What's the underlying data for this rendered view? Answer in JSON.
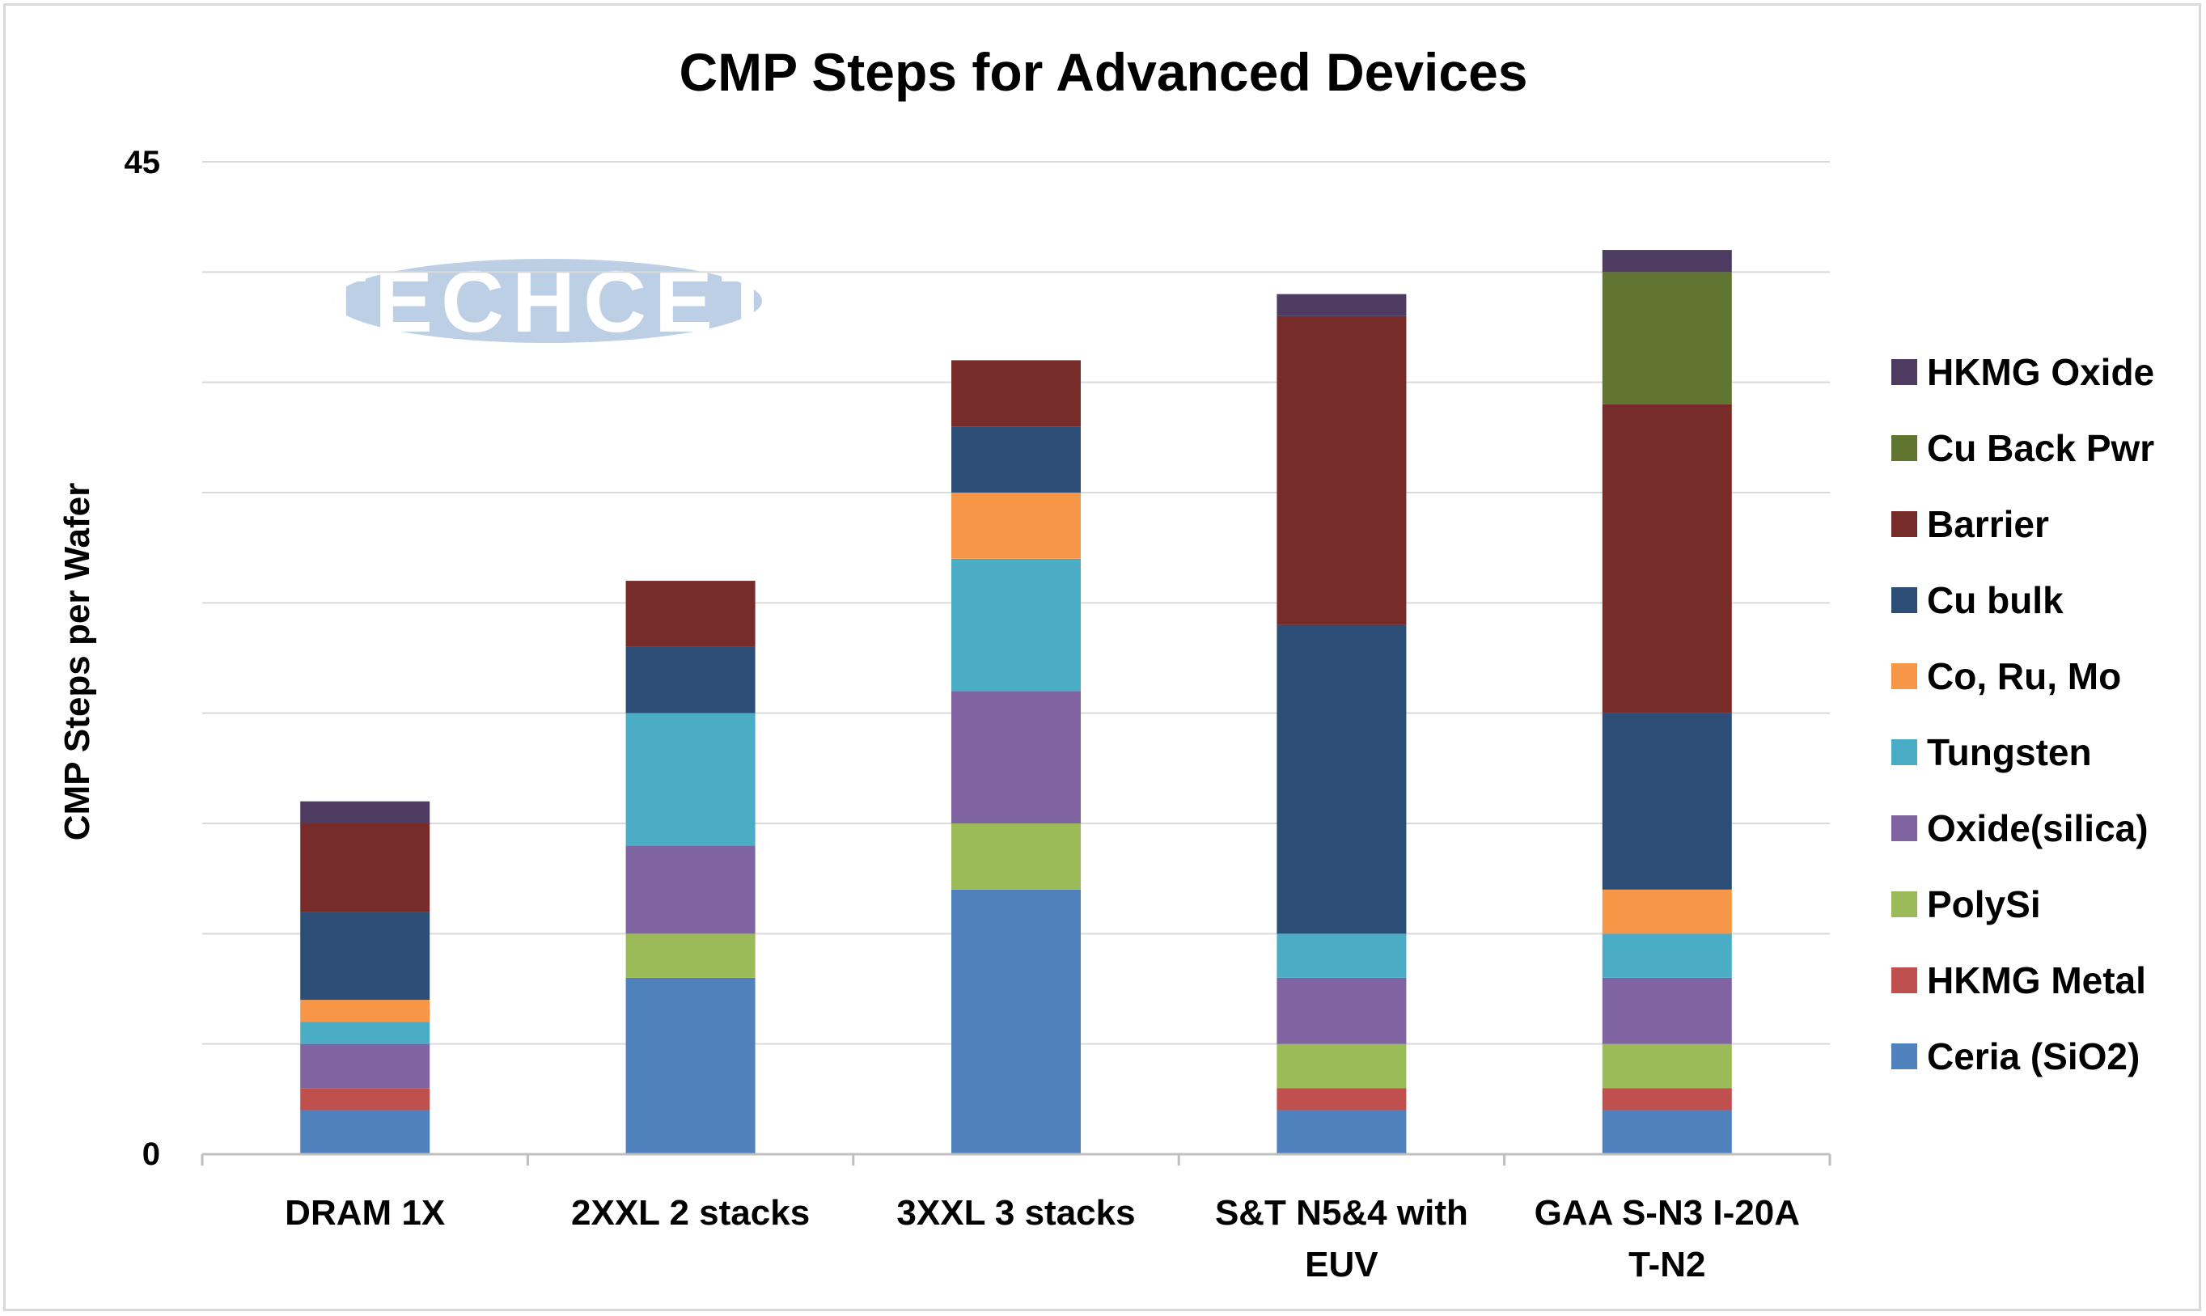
{
  "chart_data": {
    "type": "bar",
    "stacked": true,
    "title": "CMP Steps for Advanced Devices",
    "ylabel": "CMP Steps per Wafer",
    "xlabel": "",
    "ylim": [
      0,
      45
    ],
    "yticks": [
      "0",
      "45"
    ],
    "grid": true,
    "legend_position": "right",
    "watermark": "TECHCET",
    "categories": [
      [
        "DRAM 1X"
      ],
      [
        "2XXL 2 stacks"
      ],
      [
        "3XXL 3 stacks"
      ],
      [
        "S&T N5&4 with",
        "EUV"
      ],
      [
        "GAA S-N3 I-20A",
        "T-N2"
      ]
    ],
    "series": [
      {
        "name": "Ceria (SiO2)",
        "color": "#4f81bd",
        "values": [
          2,
          8,
          12,
          2,
          2
        ]
      },
      {
        "name": "HKMG Metal",
        "color": "#c0504d",
        "values": [
          1,
          0,
          0,
          1,
          1
        ]
      },
      {
        "name": "PolySi",
        "color": "#9bbb59",
        "values": [
          0,
          2,
          3,
          2,
          2
        ]
      },
      {
        "name": "Oxide(silica)",
        "color": "#8064a2",
        "values": [
          2,
          4,
          6,
          3,
          3
        ]
      },
      {
        "name": "Tungsten",
        "color": "#4bacc6",
        "values": [
          1,
          6,
          6,
          2,
          2
        ]
      },
      {
        "name": "Co, Ru, Mo",
        "color": "#f79646",
        "values": [
          1,
          0,
          3,
          0,
          2
        ]
      },
      {
        "name": "Cu bulk",
        "color": "#2c4d75",
        "values": [
          4,
          3,
          3,
          14,
          8
        ]
      },
      {
        "name": "Barrier",
        "color": "#772c2a",
        "values": [
          4,
          3,
          3,
          14,
          14
        ]
      },
      {
        "name": "Cu Back Pwr",
        "color": "#5f7530",
        "values": [
          0,
          0,
          0,
          0,
          6
        ]
      },
      {
        "name": "HKMG Oxide",
        "color": "#4d3b62",
        "values": [
          1,
          0,
          0,
          1,
          1
        ]
      }
    ]
  }
}
